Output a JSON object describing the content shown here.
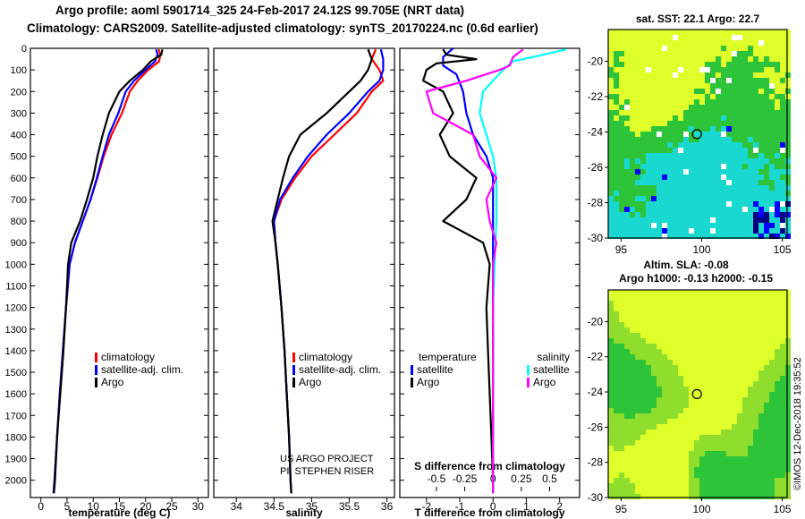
{
  "header": {
    "line1": "Argo profile: aoml 5901714_325 24-Feb-2017 24.12S 99.705E (NRT data)",
    "line2": "Climatology: CARS2009. Satellite-adjusted climatology: synTS_20170224.nc (0.6d earlier)"
  },
  "colors": {
    "climatology": "#ff0000",
    "satellite_adj": "#0000ff",
    "argo": "#000000",
    "salinity_satellite": "#00ffff",
    "salinity_argo": "#ff00ff",
    "map_yellow": "#dfff2a",
    "map_green": "#2ec43a",
    "map_cyan": "#19d8d0"
  },
  "chart_data": [
    {
      "type": "line",
      "id": "temperature",
      "xlabel": "temperature (deg C)",
      "xlim": [
        -2,
        32
      ],
      "xticks": [
        0,
        5,
        10,
        15,
        20,
        25,
        30
      ],
      "ylim": [
        0,
        2080
      ],
      "yticks": [
        0,
        100,
        200,
        300,
        400,
        500,
        600,
        700,
        800,
        900,
        1000,
        1100,
        1200,
        1300,
        1400,
        1500,
        1600,
        1700,
        1800,
        1900,
        2000
      ],
      "legend": [
        "climatology",
        "satellite-adj. clim.",
        "Argo"
      ],
      "series": [
        {
          "name": "climatology",
          "color": "#ff0000",
          "points": [
            [
              22.5,
              5
            ],
            [
              22.8,
              30
            ],
            [
              22.6,
              60
            ],
            [
              20.5,
              100
            ],
            [
              18.5,
              150
            ],
            [
              17.0,
              200
            ],
            [
              15.5,
              300
            ],
            [
              13.5,
              400
            ],
            [
              12.0,
              500
            ],
            [
              10.8,
              600
            ],
            [
              9.5,
              700
            ],
            [
              8.0,
              800
            ],
            [
              6.5,
              900
            ],
            [
              5.5,
              1000
            ],
            [
              4.8,
              1200
            ],
            [
              4.2,
              1400
            ],
            [
              3.6,
              1600
            ],
            [
              3.1,
              1800
            ],
            [
              2.6,
              2000
            ],
            [
              2.4,
              2060
            ]
          ]
        },
        {
          "name": "satellite-adj. clim.",
          "color": "#0000ff",
          "points": [
            [
              22.0,
              5
            ],
            [
              22.3,
              30
            ],
            [
              21.8,
              60
            ],
            [
              20.0,
              100
            ],
            [
              17.8,
              150
            ],
            [
              16.2,
              200
            ],
            [
              14.8,
              300
            ],
            [
              13.0,
              400
            ],
            [
              11.8,
              500
            ],
            [
              10.7,
              600
            ],
            [
              9.5,
              700
            ],
            [
              8.0,
              800
            ],
            [
              6.5,
              900
            ],
            [
              5.5,
              1000
            ],
            [
              4.8,
              1200
            ],
            [
              4.2,
              1400
            ],
            [
              3.6,
              1600
            ],
            [
              3.1,
              1800
            ],
            [
              2.6,
              2000
            ],
            [
              2.4,
              2060
            ]
          ]
        },
        {
          "name": "Argo",
          "color": "#000000",
          "points": [
            [
              23.2,
              5
            ],
            [
              23.0,
              30
            ],
            [
              21.0,
              60
            ],
            [
              19.5,
              100
            ],
            [
              17.0,
              150
            ],
            [
              15.0,
              200
            ],
            [
              13.0,
              300
            ],
            [
              11.8,
              400
            ],
            [
              10.8,
              500
            ],
            [
              10.0,
              600
            ],
            [
              8.8,
              700
            ],
            [
              7.5,
              800
            ],
            [
              5.8,
              900
            ],
            [
              5.2,
              1000
            ],
            [
              4.8,
              1200
            ],
            [
              4.3,
              1400
            ],
            [
              3.7,
              1600
            ],
            [
              3.1,
              1800
            ],
            [
              2.7,
              2000
            ],
            [
              2.5,
              2060
            ]
          ]
        }
      ]
    },
    {
      "type": "line",
      "id": "salinity",
      "xlabel": "salinity",
      "xlim": [
        33.7,
        36.1
      ],
      "xticks": [
        34,
        34.5,
        35,
        35.5,
        36
      ],
      "ylim": [
        0,
        2080
      ],
      "legend": [
        "climatology",
        "satellite-adj. clim.",
        "Argo"
      ],
      "credits": [
        "US ARGO PROJECT",
        "PI: STEPHEN RISER"
      ],
      "series": [
        {
          "name": "climatology",
          "color": "#ff0000",
          "points": [
            [
              35.85,
              5
            ],
            [
              35.8,
              50
            ],
            [
              35.9,
              100
            ],
            [
              35.95,
              150
            ],
            [
              35.8,
              200
            ],
            [
              35.6,
              300
            ],
            [
              35.3,
              400
            ],
            [
              35.0,
              500
            ],
            [
              34.78,
              600
            ],
            [
              34.6,
              700
            ],
            [
              34.5,
              800
            ],
            [
              34.52,
              900
            ],
            [
              34.55,
              1000
            ],
            [
              34.6,
              1200
            ],
            [
              34.64,
              1400
            ],
            [
              34.67,
              1600
            ],
            [
              34.7,
              1800
            ],
            [
              34.72,
              2000
            ],
            [
              34.73,
              2060
            ]
          ]
        },
        {
          "name": "satellite-adj. clim.",
          "color": "#0000ff",
          "points": [
            [
              35.92,
              5
            ],
            [
              35.95,
              50
            ],
            [
              35.95,
              100
            ],
            [
              35.9,
              150
            ],
            [
              35.75,
              200
            ],
            [
              35.5,
              300
            ],
            [
              35.2,
              400
            ],
            [
              34.95,
              500
            ],
            [
              34.75,
              600
            ],
            [
              34.58,
              700
            ],
            [
              34.5,
              800
            ],
            [
              34.52,
              900
            ],
            [
              34.55,
              1000
            ],
            [
              34.6,
              1200
            ],
            [
              34.64,
              1400
            ],
            [
              34.67,
              1600
            ],
            [
              34.7,
              1800
            ],
            [
              34.72,
              2000
            ],
            [
              34.73,
              2060
            ]
          ]
        },
        {
          "name": "Argo",
          "color": "#000000",
          "points": [
            [
              35.75,
              5
            ],
            [
              35.8,
              50
            ],
            [
              35.75,
              100
            ],
            [
              35.65,
              150
            ],
            [
              35.5,
              200
            ],
            [
              35.2,
              300
            ],
            [
              34.85,
              400
            ],
            [
              34.7,
              500
            ],
            [
              34.62,
              600
            ],
            [
              34.55,
              700
            ],
            [
              34.48,
              800
            ],
            [
              34.52,
              900
            ],
            [
              34.55,
              1000
            ],
            [
              34.6,
              1200
            ],
            [
              34.64,
              1400
            ],
            [
              34.67,
              1600
            ],
            [
              34.7,
              1800
            ],
            [
              34.72,
              2000
            ],
            [
              34.73,
              2060
            ]
          ]
        }
      ]
    },
    {
      "type": "line",
      "id": "difference",
      "xlabel": "T difference from climatology",
      "xlabel_top": "S difference from climatology",
      "xlim": [
        -2.8,
        2.6
      ],
      "xticks_bottom": [
        -2,
        -1,
        0,
        1,
        2
      ],
      "xticks_top": [
        "-0.5",
        "-0.25",
        "0",
        "0.25",
        "0.5"
      ],
      "legend_left_title": "temperature",
      "legend_right_title": "salinity",
      "legend_left": [
        "satellite",
        "Argo"
      ],
      "legend_right": [
        "satellite",
        "Argo"
      ],
      "series": [
        {
          "name": "T satellite",
          "color": "#0000ff",
          "points": [
            [
              -1.2,
              0
            ],
            [
              -1.5,
              40
            ],
            [
              -1.5,
              80
            ],
            [
              -1.1,
              120
            ],
            [
              -1.0,
              160
            ],
            [
              -0.9,
              200
            ],
            [
              -0.8,
              300
            ],
            [
              -0.6,
              400
            ],
            [
              -0.2,
              500
            ],
            [
              0.0,
              600
            ],
            [
              0.0,
              700
            ],
            [
              0.0,
              800
            ],
            [
              0.0,
              1000
            ],
            [
              0.0,
              1200
            ],
            [
              0.0,
              1500
            ],
            [
              0.0,
              1800
            ],
            [
              0.0,
              2060
            ]
          ]
        },
        {
          "name": "T Argo",
          "color": "#000000",
          "points": [
            [
              -1.5,
              5
            ],
            [
              -1.4,
              30
            ],
            [
              -0.5,
              50
            ],
            [
              -1.7,
              70
            ],
            [
              -2.0,
              100
            ],
            [
              -2.1,
              150
            ],
            [
              -1.5,
              200
            ],
            [
              -1.2,
              300
            ],
            [
              -1.6,
              400
            ],
            [
              -1.3,
              500
            ],
            [
              -0.5,
              600
            ],
            [
              -0.8,
              700
            ],
            [
              -1.5,
              800
            ],
            [
              -0.3,
              900
            ],
            [
              -0.1,
              1000
            ],
            [
              -0.2,
              1200
            ],
            [
              -0.15,
              1400
            ],
            [
              -0.1,
              1600
            ],
            [
              -0.05,
              1800
            ],
            [
              0.0,
              2000
            ],
            [
              0.0,
              2060
            ]
          ]
        },
        {
          "name": "S satellite",
          "color": "#00ffff",
          "points": [
            [
              2.2,
              5
            ],
            [
              1.5,
              30
            ],
            [
              0.6,
              60
            ],
            [
              0.3,
              100
            ],
            [
              0.0,
              150
            ],
            [
              -0.3,
              200
            ],
            [
              -0.4,
              300
            ],
            [
              -0.2,
              400
            ],
            [
              0.0,
              500
            ],
            [
              0.1,
              600
            ],
            [
              0.1,
              800
            ],
            [
              0.05,
              1000
            ],
            [
              0.0,
              1200
            ],
            [
              0.0,
              1500
            ],
            [
              0.0,
              1800
            ],
            [
              0.0,
              2060
            ]
          ]
        },
        {
          "name": "S Argo",
          "color": "#ff00ff",
          "points": [
            [
              0.9,
              5
            ],
            [
              0.6,
              40
            ],
            [
              0.5,
              80
            ],
            [
              0.2,
              100
            ],
            [
              -0.8,
              150
            ],
            [
              -2.0,
              200
            ],
            [
              -1.8,
              300
            ],
            [
              -0.6,
              400
            ],
            [
              -0.4,
              500
            ],
            [
              0.1,
              600
            ],
            [
              -0.2,
              700
            ],
            [
              -0.1,
              800
            ],
            [
              0.1,
              900
            ],
            [
              0.0,
              1000
            ],
            [
              0.0,
              1200
            ],
            [
              0.0,
              1500
            ],
            [
              0.0,
              1800
            ],
            [
              0.0,
              2060
            ]
          ]
        }
      ]
    },
    {
      "type": "heatmap",
      "id": "sst_map",
      "title": "sat. SST: 22.1  Argo: 22.7",
      "xlim": [
        94.2,
        105.3
      ],
      "ylim": [
        -30,
        -18.2
      ],
      "xticks": [
        95,
        100,
        105
      ],
      "yticks": [
        -20,
        -22,
        -24,
        -26,
        -28,
        -30
      ],
      "marker": {
        "lon": 99.705,
        "lat": -24.12
      }
    },
    {
      "type": "heatmap",
      "id": "sla_map",
      "title": "Altim. SLA: -0.08",
      "subtitle": "Argo h1000: -0.13 h2000: -0.15",
      "xlim": [
        94.2,
        105.3
      ],
      "ylim": [
        -30,
        -18.2
      ],
      "xticks": [
        95,
        100,
        105
      ],
      "yticks": [
        -20,
        -22,
        -24,
        -26,
        -28,
        -30
      ],
      "marker": {
        "lon": 99.705,
        "lat": -24.12
      }
    }
  ],
  "footer": {
    "stamp": "©IMOS 12-Dec-2018 19:35:52"
  }
}
